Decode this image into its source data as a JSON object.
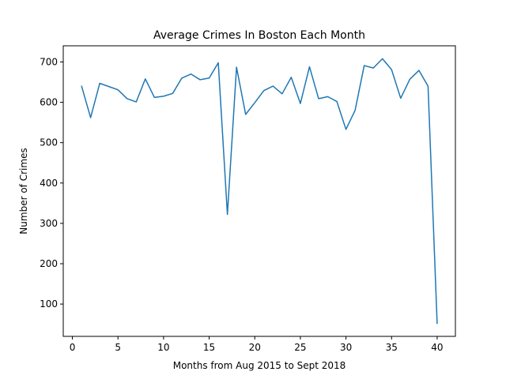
{
  "chart_data": {
    "type": "line",
    "title": "Average Crimes In Boston Each Month",
    "xlabel": "Months from Aug 2015 to Sept 2018",
    "ylabel": "Number of Crimes",
    "xlim": [
      -1,
      42
    ],
    "ylim": [
      20,
      740
    ],
    "xticks": [
      0,
      5,
      10,
      15,
      20,
      25,
      30,
      35,
      40
    ],
    "yticks": [
      100,
      200,
      300,
      400,
      500,
      600,
      700
    ],
    "grid": false,
    "line_color": "#1f77b4",
    "series": [
      {
        "x": [
          1,
          2,
          3,
          4,
          5,
          6,
          7,
          8,
          9,
          10,
          11,
          12,
          13,
          14,
          15,
          16,
          17,
          18,
          19,
          20,
          21,
          22,
          23,
          24,
          25,
          26,
          27,
          28,
          29,
          30,
          31,
          32,
          33,
          34,
          35,
          36,
          37,
          38,
          39,
          40
        ],
        "values": [
          641,
          562,
          647,
          639,
          631,
          609,
          601,
          658,
          612,
          615,
          622,
          660,
          670,
          656,
          660,
          698,
          322,
          687,
          570,
          599,
          629,
          640,
          621,
          662,
          597,
          688,
          609,
          614,
          602,
          533,
          580,
          691,
          685,
          708,
          681,
          610,
          657,
          679,
          640,
          51
        ]
      }
    ]
  }
}
